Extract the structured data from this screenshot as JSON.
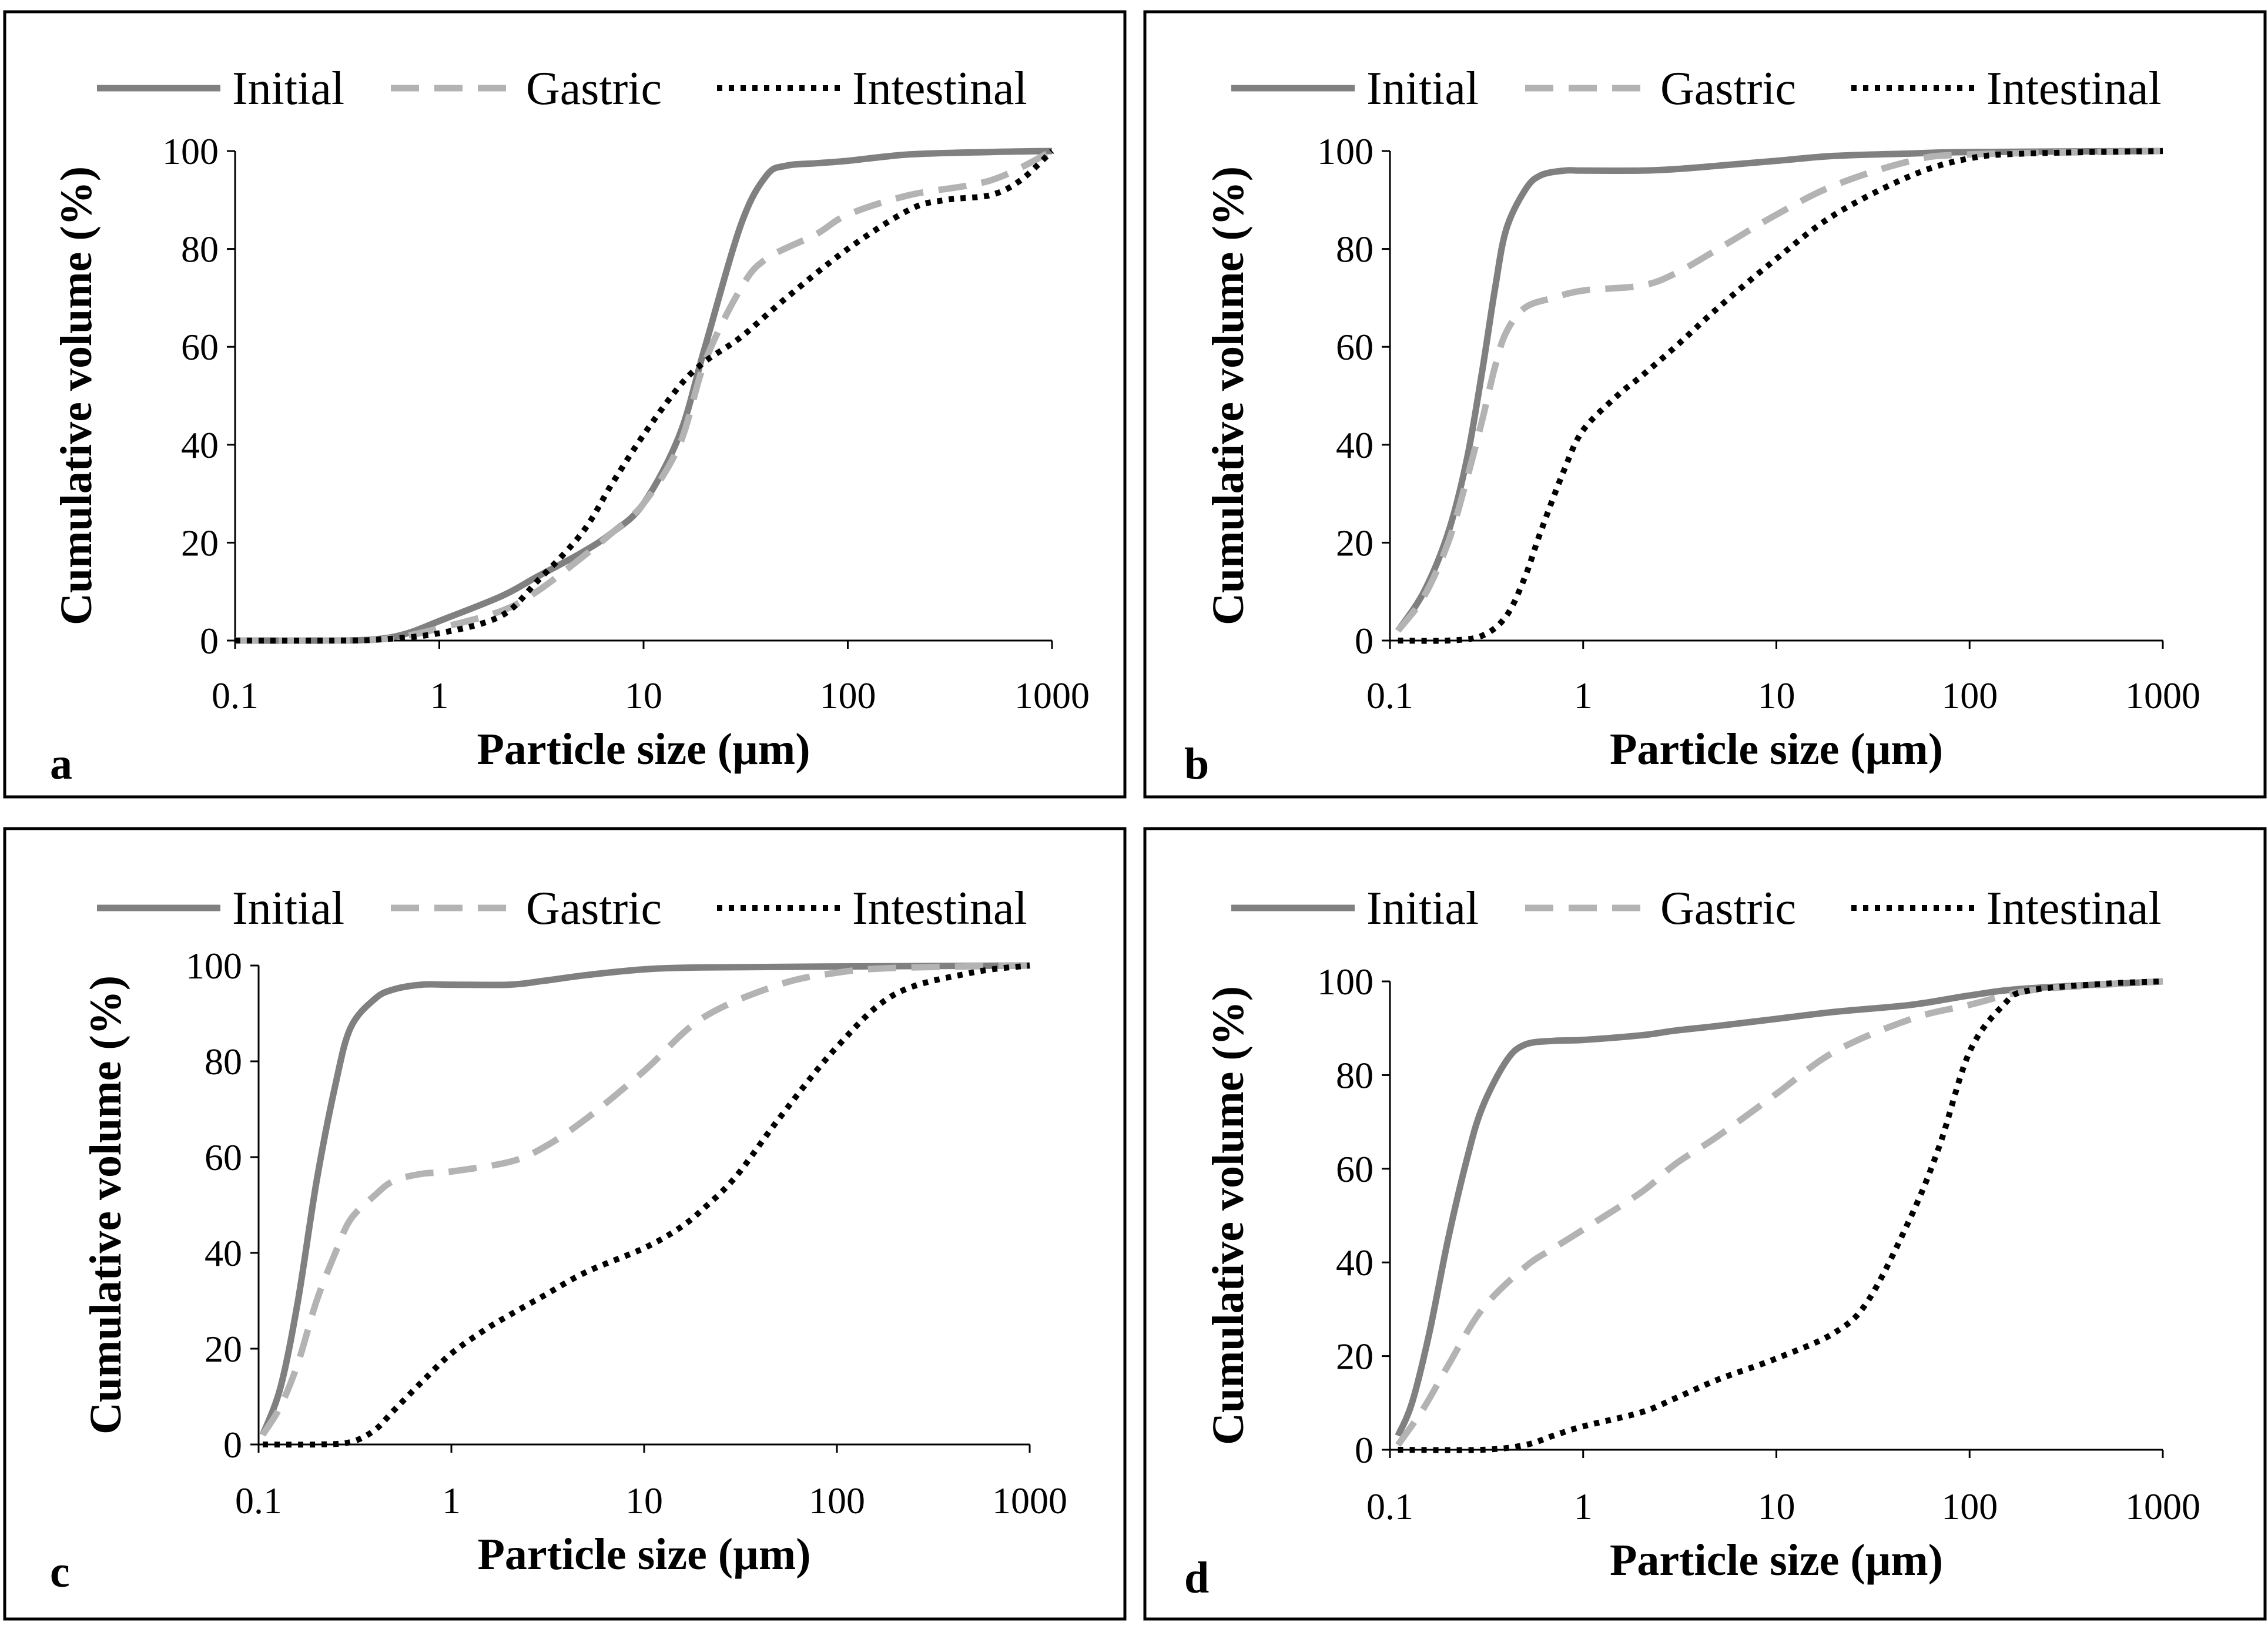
{
  "colors": {
    "initial": "#808080",
    "gastric": "#b3b3b3",
    "intestinal": "#000000"
  },
  "chart_data": [
    {
      "type": "line",
      "panel_label": "a",
      "xlabel": "Particle size (µm)",
      "ylabel": "Cumulative volume (%)",
      "x_scale": "log",
      "xlim": [
        0.1,
        1000
      ],
      "ylim": [
        0,
        100
      ],
      "x_ticks": [
        "0.1",
        "1",
        "10",
        "100",
        "1000"
      ],
      "y_ticks": [
        "0",
        "20",
        "40",
        "60",
        "80",
        "100"
      ],
      "grid": false,
      "legend_position": "top",
      "series": [
        {
          "name": "Initial",
          "style": "solid",
          "color": "#808080",
          "points": [
            [
              0.1,
              0
            ],
            [
              0.3,
              0
            ],
            [
              0.5,
              0.3
            ],
            [
              0.7,
              1.5
            ],
            [
              1,
              4
            ],
            [
              2,
              9
            ],
            [
              3,
              13
            ],
            [
              5,
              18
            ],
            [
              7,
              22
            ],
            [
              10,
              28
            ],
            [
              15,
              42
            ],
            [
              20,
              60
            ],
            [
              30,
              85
            ],
            [
              40,
              95
            ],
            [
              50,
              97
            ],
            [
              70,
              97.5
            ],
            [
              100,
              98
            ],
            [
              200,
              99.3
            ],
            [
              500,
              99.8
            ],
            [
              1000,
              100
            ]
          ]
        },
        {
          "name": "Gastric",
          "style": "dashed",
          "color": "#b3b3b3",
          "points": [
            [
              0.1,
              0
            ],
            [
              0.3,
              0
            ],
            [
              0.5,
              0.2
            ],
            [
              0.7,
              1
            ],
            [
              1,
              2.5
            ],
            [
              2,
              6
            ],
            [
              3,
              10
            ],
            [
              5,
              17
            ],
            [
              7,
              22
            ],
            [
              10,
              28
            ],
            [
              15,
              40
            ],
            [
              20,
              57
            ],
            [
              30,
              72
            ],
            [
              40,
              78
            ],
            [
              70,
              83
            ],
            [
              100,
              87
            ],
            [
              200,
              91
            ],
            [
              500,
              94
            ],
            [
              1000,
              100
            ]
          ]
        },
        {
          "name": "Intestinal",
          "style": "dotted",
          "color": "#000000",
          "points": [
            [
              0.1,
              0
            ],
            [
              0.3,
              0
            ],
            [
              0.5,
              0.2
            ],
            [
              1,
              1.5
            ],
            [
              2,
              5
            ],
            [
              3,
              12
            ],
            [
              5,
              22
            ],
            [
              7,
              32
            ],
            [
              10,
              42
            ],
            [
              15,
              52
            ],
            [
              20,
              57
            ],
            [
              30,
              62
            ],
            [
              50,
              70
            ],
            [
              100,
              80
            ],
            [
              200,
              88
            ],
            [
              300,
              90
            ],
            [
              500,
              91
            ],
            [
              700,
              94
            ],
            [
              1000,
              100
            ]
          ]
        }
      ]
    },
    {
      "type": "line",
      "panel_label": "b",
      "xlabel": "Particle size (µm)",
      "ylabel": "Cumulative volume (%)",
      "x_scale": "log",
      "xlim": [
        0.1,
        1000
      ],
      "ylim": [
        0,
        100
      ],
      "x_ticks": [
        "0.1",
        "1",
        "10",
        "100",
        "1000"
      ],
      "y_ticks": [
        "0",
        "20",
        "40",
        "60",
        "80",
        "100"
      ],
      "grid": false,
      "legend_position": "top",
      "series": [
        {
          "name": "Initial",
          "style": "solid",
          "color": "#808080",
          "points": [
            [
              0.11,
              2
            ],
            [
              0.15,
              10
            ],
            [
              0.2,
              22
            ],
            [
              0.25,
              37
            ],
            [
              0.3,
              55
            ],
            [
              0.35,
              72
            ],
            [
              0.4,
              84
            ],
            [
              0.5,
              92
            ],
            [
              0.6,
              95
            ],
            [
              0.8,
              96
            ],
            [
              1,
              96
            ],
            [
              2,
              96
            ],
            [
              3,
              96.3
            ],
            [
              5,
              97
            ],
            [
              10,
              98
            ],
            [
              20,
              99
            ],
            [
              50,
              99.5
            ],
            [
              100,
              99.8
            ],
            [
              1000,
              100
            ]
          ]
        },
        {
          "name": "Gastric",
          "style": "dashed",
          "color": "#b3b3b3",
          "points": [
            [
              0.11,
              2
            ],
            [
              0.15,
              9
            ],
            [
              0.2,
              20
            ],
            [
              0.25,
              33
            ],
            [
              0.3,
              45
            ],
            [
              0.35,
              56
            ],
            [
              0.4,
              63
            ],
            [
              0.5,
              68
            ],
            [
              0.7,
              70
            ],
            [
              1,
              71.5
            ],
            [
              2,
              72.5
            ],
            [
              3,
              75
            ],
            [
              5,
              80
            ],
            [
              10,
              87
            ],
            [
              20,
              93
            ],
            [
              50,
              98
            ],
            [
              100,
              99.3
            ],
            [
              1000,
              100
            ]
          ]
        },
        {
          "name": "Intestinal",
          "style": "dotted",
          "color": "#000000",
          "points": [
            [
              0.11,
              0
            ],
            [
              0.2,
              0
            ],
            [
              0.3,
              1
            ],
            [
              0.4,
              5
            ],
            [
              0.5,
              13
            ],
            [
              0.6,
              22
            ],
            [
              0.8,
              35
            ],
            [
              1,
              43
            ],
            [
              1.5,
              50
            ],
            [
              2,
              54
            ],
            [
              3,
              60
            ],
            [
              5,
              68
            ],
            [
              10,
              78
            ],
            [
              20,
              87
            ],
            [
              50,
              95
            ],
            [
              100,
              98.5
            ],
            [
              200,
              99.5
            ],
            [
              1000,
              100
            ]
          ]
        }
      ]
    },
    {
      "type": "line",
      "panel_label": "c",
      "xlabel": "Particle size (µm)",
      "ylabel": "Cumulative volume (%)",
      "x_scale": "log",
      "xlim": [
        0.1,
        1000
      ],
      "ylim": [
        0,
        100
      ],
      "x_ticks": [
        "0.1",
        "1",
        "10",
        "100",
        "1000"
      ],
      "y_ticks": [
        "0",
        "20",
        "40",
        "60",
        "80",
        "100"
      ],
      "grid": false,
      "legend_position": "top",
      "series": [
        {
          "name": "Initial",
          "style": "solid",
          "color": "#808080",
          "points": [
            [
              0.105,
              2
            ],
            [
              0.13,
              12
            ],
            [
              0.16,
              30
            ],
            [
              0.2,
              55
            ],
            [
              0.25,
              75
            ],
            [
              0.3,
              87
            ],
            [
              0.4,
              93
            ],
            [
              0.5,
              95
            ],
            [
              0.7,
              96
            ],
            [
              1,
              96
            ],
            [
              2,
              96
            ],
            [
              3,
              96.8
            ],
            [
              5,
              98
            ],
            [
              10,
              99.2
            ],
            [
              20,
              99.6
            ],
            [
              100,
              99.8
            ],
            [
              1000,
              100
            ]
          ]
        },
        {
          "name": "Gastric",
          "style": "dashed",
          "color": "#b3b3b3",
          "points": [
            [
              0.105,
              2
            ],
            [
              0.13,
              8
            ],
            [
              0.16,
              17
            ],
            [
              0.2,
              30
            ],
            [
              0.25,
              40
            ],
            [
              0.3,
              47
            ],
            [
              0.4,
              52
            ],
            [
              0.5,
              55
            ],
            [
              0.7,
              56.5
            ],
            [
              1,
              57
            ],
            [
              2,
              59
            ],
            [
              3,
              62
            ],
            [
              5,
              68
            ],
            [
              10,
              78
            ],
            [
              20,
              89
            ],
            [
              50,
              96
            ],
            [
              100,
              98.5
            ],
            [
              200,
              99.5
            ],
            [
              1000,
              100
            ]
          ]
        },
        {
          "name": "Intestinal",
          "style": "dotted",
          "color": "#000000",
          "points": [
            [
              0.105,
              0
            ],
            [
              0.2,
              0
            ],
            [
              0.3,
              0.5
            ],
            [
              0.4,
              3
            ],
            [
              0.5,
              7
            ],
            [
              0.7,
              13
            ],
            [
              1,
              19
            ],
            [
              1.5,
              24
            ],
            [
              2,
              27
            ],
            [
              3,
              31
            ],
            [
              5,
              36
            ],
            [
              10,
              41
            ],
            [
              15,
              45
            ],
            [
              20,
              49
            ],
            [
              30,
              56
            ],
            [
              50,
              68
            ],
            [
              100,
              83
            ],
            [
              200,
              94
            ],
            [
              500,
              98.5
            ],
            [
              1000,
              100
            ]
          ]
        }
      ]
    },
    {
      "type": "line",
      "panel_label": "d",
      "xlabel": "Particle size (µm)",
      "ylabel": "Cumulative volume (%)",
      "x_scale": "log",
      "xlim": [
        0.1,
        1000
      ],
      "ylim": [
        0,
        100
      ],
      "x_ticks": [
        "0.1",
        "1",
        "10",
        "100",
        "1000"
      ],
      "y_ticks": [
        "0",
        "20",
        "40",
        "60",
        "80",
        "100"
      ],
      "grid": false,
      "legend_position": "top",
      "series": [
        {
          "name": "Initial",
          "style": "solid",
          "color": "#808080",
          "points": [
            [
              0.11,
              3
            ],
            [
              0.13,
              10
            ],
            [
              0.16,
              25
            ],
            [
              0.2,
              45
            ],
            [
              0.25,
              62
            ],
            [
              0.3,
              73
            ],
            [
              0.4,
              83
            ],
            [
              0.5,
              86.5
            ],
            [
              0.7,
              87.3
            ],
            [
              1,
              87.5
            ],
            [
              2,
              88.5
            ],
            [
              3,
              89.5
            ],
            [
              5,
              90.5
            ],
            [
              10,
              92
            ],
            [
              20,
              93.5
            ],
            [
              50,
              95
            ],
            [
              100,
              97
            ],
            [
              200,
              98.5
            ],
            [
              1000,
              100
            ]
          ]
        },
        {
          "name": "Gastric",
          "style": "dashed",
          "color": "#b3b3b3",
          "points": [
            [
              0.11,
              1
            ],
            [
              0.15,
              9
            ],
            [
              0.2,
              18
            ],
            [
              0.3,
              30
            ],
            [
              0.5,
              39
            ],
            [
              0.7,
              43
            ],
            [
              1,
              47
            ],
            [
              2,
              55
            ],
            [
              3,
              61
            ],
            [
              5,
              67
            ],
            [
              10,
              76
            ],
            [
              20,
              85
            ],
            [
              50,
              92
            ],
            [
              100,
              95
            ],
            [
              200,
              98
            ],
            [
              500,
              99.3
            ],
            [
              1000,
              100
            ]
          ]
        },
        {
          "name": "Intestinal",
          "style": "dotted",
          "color": "#000000",
          "points": [
            [
              0.11,
              0
            ],
            [
              0.3,
              0
            ],
            [
              0.5,
              1
            ],
            [
              0.7,
              3
            ],
            [
              1,
              5
            ],
            [
              2,
              8
            ],
            [
              3,
              11
            ],
            [
              5,
              15
            ],
            [
              10,
              19.5
            ],
            [
              20,
              25
            ],
            [
              30,
              32
            ],
            [
              50,
              50
            ],
            [
              70,
              65
            ],
            [
              100,
              85
            ],
            [
              150,
              95
            ],
            [
              200,
              98
            ],
            [
              500,
              99.5
            ],
            [
              1000,
              100
            ]
          ]
        }
      ]
    }
  ]
}
